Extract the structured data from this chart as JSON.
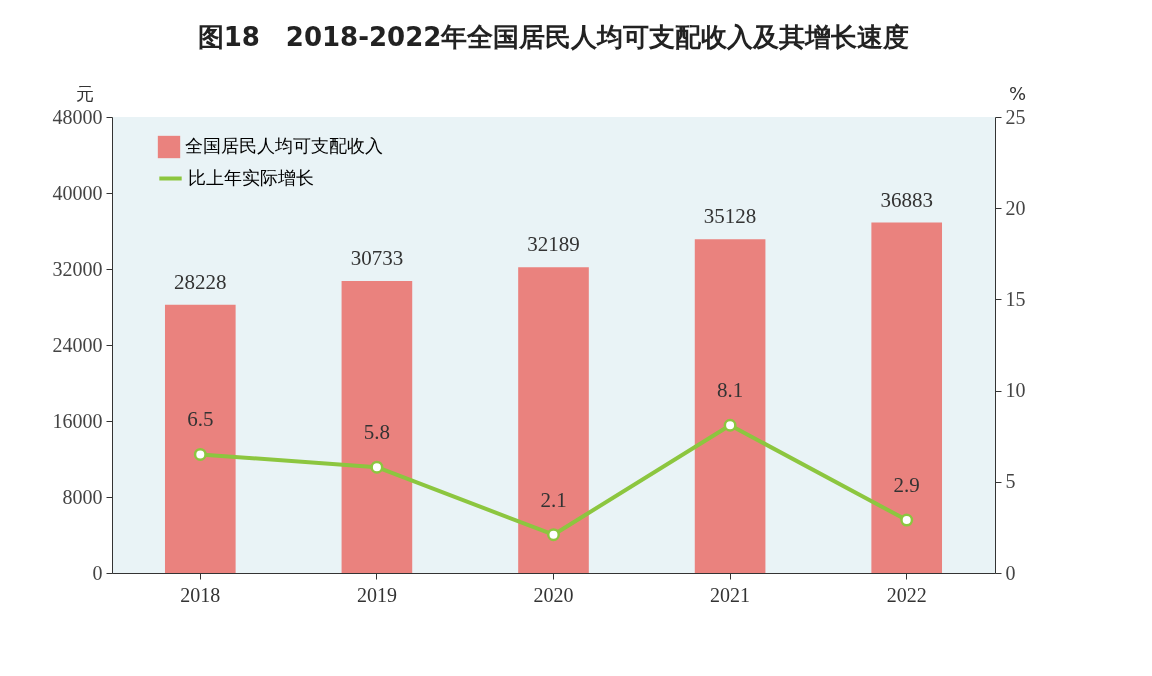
{
  "chart_data": {
    "type": "bar",
    "title": "图18　2018-2022年全国居民人均可支配收入及其增长速度",
    "ylabel": "元",
    "y2label": "%",
    "categories": [
      "2018",
      "2019",
      "2020",
      "2021",
      "2022"
    ],
    "series": [
      {
        "name": "全国居民人均可支配收入",
        "color": "#ea827e",
        "values": [
          28228,
          30733,
          32189,
          35128,
          36883
        ]
      },
      {
        "name": "比上年实际增长",
        "type": "line",
        "axis": "y2",
        "color": "#8cc63f",
        "marker": "circle",
        "values": [
          6.5,
          5.8,
          2.1,
          8.1,
          2.9
        ]
      }
    ],
    "ylim": [
      0,
      48000
    ],
    "yticks": [
      0,
      8000,
      16000,
      24000,
      32000,
      40000,
      48000
    ],
    "y2lim": [
      0,
      25
    ],
    "y2ticks": [
      0,
      5,
      10,
      15,
      20,
      25
    ],
    "data_labels": true,
    "grid": false,
    "legend": "top left"
  }
}
